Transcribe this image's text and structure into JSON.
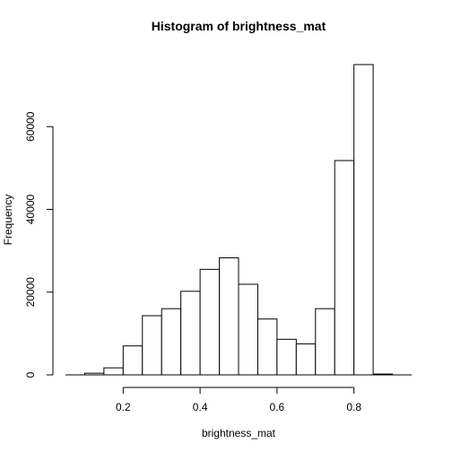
{
  "chart_data": {
    "type": "bar",
    "title": "Histogram of brightness_mat",
    "xlabel": "brightness_mat",
    "ylabel": "Frequency",
    "bin_edges": [
      0.1,
      0.15,
      0.2,
      0.25,
      0.3,
      0.35,
      0.4,
      0.45,
      0.5,
      0.55,
      0.6,
      0.65,
      0.7,
      0.75,
      0.8,
      0.85,
      0.9
    ],
    "values": [
      400,
      1700,
      7000,
      14300,
      16000,
      20200,
      25500,
      28300,
      21900,
      13500,
      8600,
      7500,
      16000,
      51800,
      75000,
      200
    ],
    "xlim": [
      0.05,
      0.95
    ],
    "ylim": [
      0,
      75000
    ],
    "x_ticks": [
      0.2,
      0.4,
      0.6,
      0.8
    ],
    "x_tick_labels": [
      "0.2",
      "0.4",
      "0.6",
      "0.8"
    ],
    "y_ticks": [
      0,
      20000,
      40000,
      60000
    ],
    "y_tick_labels": [
      "0",
      "20000",
      "40000",
      "60000"
    ],
    "grid": false
  }
}
